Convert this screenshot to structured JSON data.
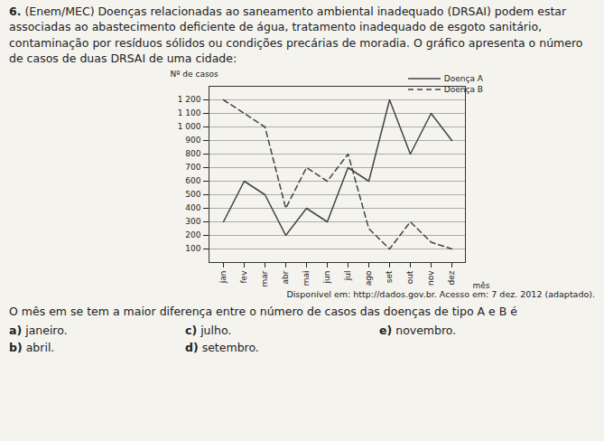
{
  "chart_data": {
    "type": "line",
    "y_label": "Nº de casos",
    "x_label": "mês",
    "categories": [
      "jan",
      "fev",
      "mar",
      "abr",
      "mai",
      "jun",
      "jul",
      "ago",
      "set",
      "out",
      "nov",
      "dez"
    ],
    "series": [
      {
        "name": "Doença A",
        "color": "#444444",
        "line_style": "solid",
        "values": [
          300,
          600,
          500,
          200,
          400,
          300,
          700,
          600,
          1200,
          800,
          1100,
          900
        ]
      },
      {
        "name": "Doença B",
        "color": "#444444",
        "line_style": "dashed",
        "values": [
          1200,
          1100,
          1000,
          400,
          700,
          600,
          800,
          250,
          100,
          300,
          150,
          100
        ]
      }
    ],
    "ylim": [
      0,
      1300
    ],
    "yticks": [
      100,
      200,
      300,
      400,
      500,
      600,
      700,
      800,
      900,
      {
        "value": 1000,
        "label": "1 000"
      },
      {
        "value": 1100,
        "label": "1 100"
      },
      {
        "value": 1200,
        "label": "1 200"
      }
    ],
    "grid": true,
    "legend": "top-right",
    "caption": "Disponível em: http://dados.gov.br. Acesso em: 7 dez. 2012 (adaptado)."
  },
  "question": {
    "number": "6.",
    "source": "(Enem/MEC)",
    "intro": "Doenças relacionadas ao saneamento ambiental inadequado (DRSAI) podem estar associadas ao abastecimento deficiente de água, tratamento inadequado de esgoto sanitário, contaminação por resíduos sólidos ou condições precárias de moradia. O gráfico apresenta o número de casos de duas DRSAI de uma cidade:",
    "prompt": "O mês em se tem a maior diferença entre o número de casos das doenças de tipo A e B é",
    "options": [
      {
        "letter": "a)",
        "text": "janeiro."
      },
      {
        "letter": "c)",
        "text": "julho."
      },
      {
        "letter": "e)",
        "text": "novembro."
      },
      {
        "letter": "b)",
        "text": "abril."
      },
      {
        "letter": "d)",
        "text": "setembro."
      }
    ]
  }
}
